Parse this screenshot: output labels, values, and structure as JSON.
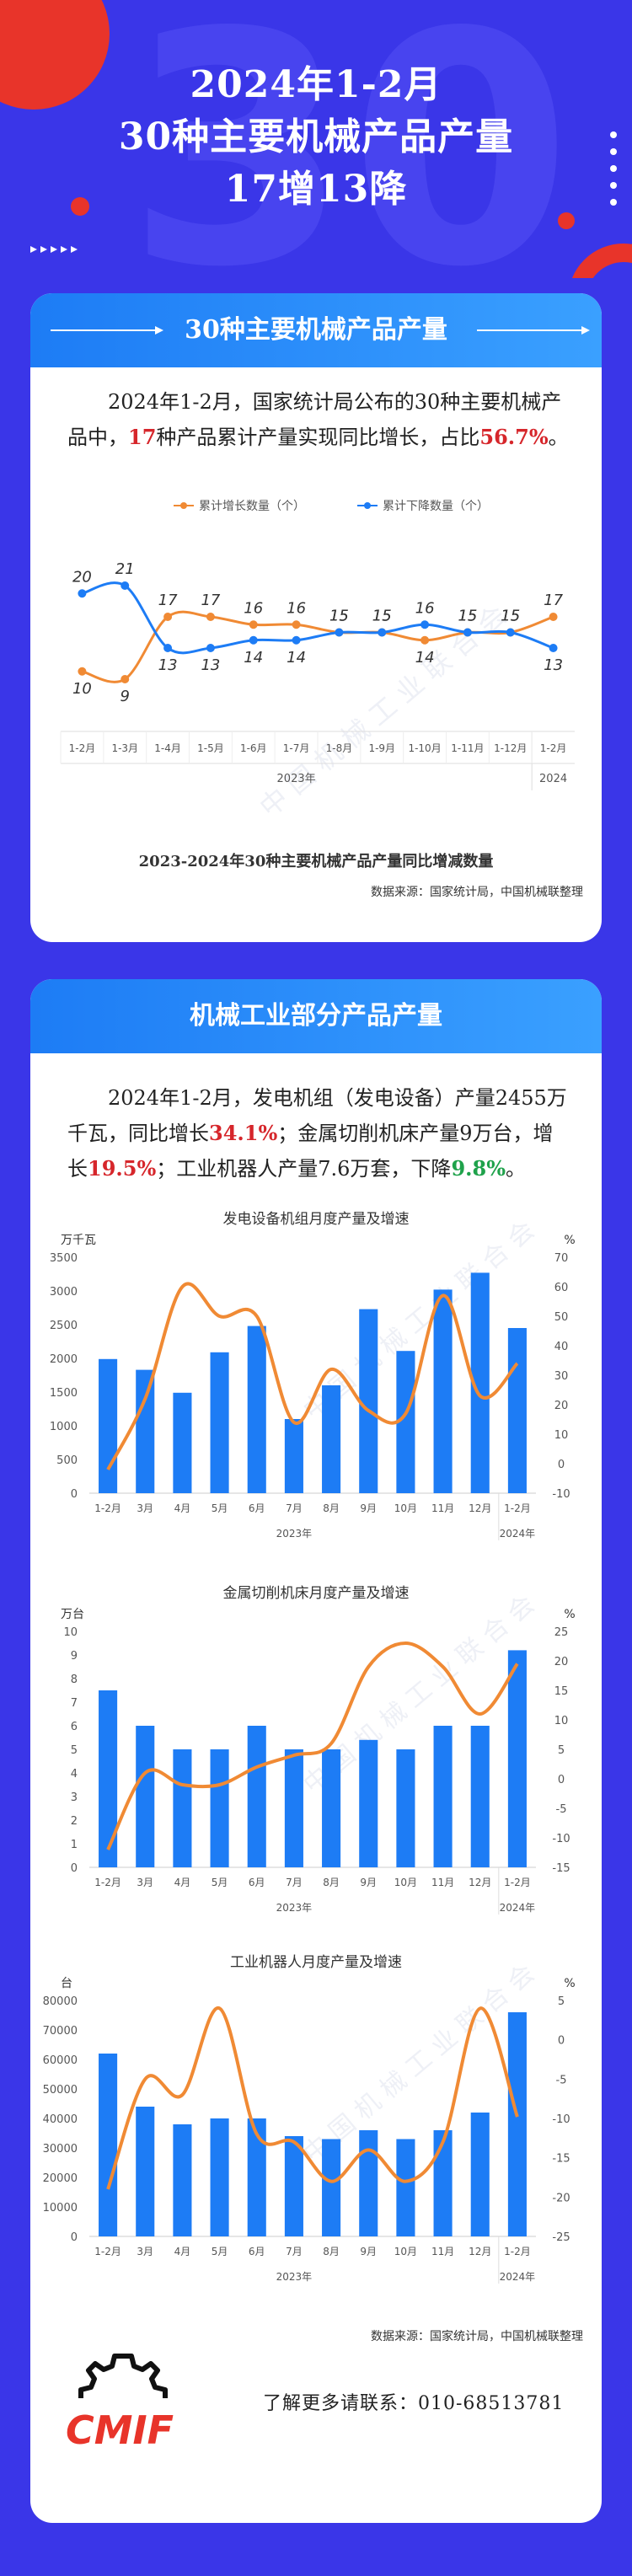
{
  "header": {
    "title_line1": "2024年1-2月",
    "title_line2": "30种主要机械产品产量",
    "title_line3": "17增13降",
    "colors": {
      "background": "#3a36e8",
      "accent_red": "#e8342a"
    }
  },
  "section1": {
    "banner_title": "30种主要机械产品产量",
    "para": {
      "p1": "2024年1-2月，国家统计局公布的30种主要机械产品中，",
      "num1": "17",
      "p2": "种产品累计产量实现同比增长，占比",
      "num2": "56.7%",
      "p3": "。"
    },
    "caption": "2023-2024年30种主要机械产品产量同比增减数量",
    "source": "数据来源：国家统计局，中国机械联整理"
  },
  "section2": {
    "banner_title": "机械工业部分产品产量",
    "para": {
      "p1": "2024年1-2月，发电机组（发电设备）产量2455万千瓦，同比增长",
      "v1": "34.1%",
      "p2": "；金属切削机床产量9万台，增长",
      "v2": "19.5%",
      "p3": "；工业机器人产量7.6万套，下降",
      "v3": "9.8%",
      "p4": "。"
    },
    "source": "数据来源：国家统计局，中国机械联整理"
  },
  "footer": {
    "logo_text": "CMIF",
    "contact": "了解更多请联系：010-68513781"
  },
  "chart_data": [
    {
      "type": "line",
      "title": "",
      "categories": [
        "1-2月",
        "1-3月",
        "1-4月",
        "1-5月",
        "1-6月",
        "1-7月",
        "1-8月",
        "1-9月",
        "1-10月",
        "1-11月",
        "1-12月",
        "1-2月"
      ],
      "year_labels": [
        "2023年",
        "2024"
      ],
      "series": [
        {
          "name": "累计增长数量（个）",
          "color": "#f08a34",
          "values": [
            10,
            9,
            17,
            17,
            16,
            16,
            15,
            15,
            14,
            15,
            15,
            17
          ]
        },
        {
          "name": "累计下降数量（个）",
          "color": "#1d7cf5",
          "values": [
            20,
            21,
            13,
            13,
            14,
            14,
            15,
            15,
            16,
            15,
            15,
            13
          ]
        }
      ],
      "ylim": [
        5,
        25
      ],
      "legend": "top",
      "grid": false
    },
    {
      "type": "bar",
      "title": "发电设备机组月度产量及增速",
      "ylabel_left": "万千瓦",
      "ylabel_right": "%",
      "categories": [
        "1-2月",
        "3月",
        "4月",
        "5月",
        "6月",
        "7月",
        "8月",
        "9月",
        "10月",
        "11月",
        "12月",
        "1-2月"
      ],
      "year_labels": [
        "2023年",
        "2024年"
      ],
      "left_ticks": [
        0,
        500,
        1000,
        1500,
        2000,
        2500,
        3000,
        3500
      ],
      "right_ticks": [
        -10,
        0,
        10,
        20,
        30,
        40,
        50,
        60,
        70
      ],
      "ylim_left": [
        0,
        3500
      ],
      "ylim_right": [
        -10,
        70
      ],
      "series": [
        {
          "name": "产量",
          "kind": "bar",
          "color": "#1d7cf5",
          "values": [
            1990,
            1830,
            1490,
            2090,
            2480,
            1100,
            1600,
            2730,
            2110,
            3020,
            3270,
            2450
          ]
        },
        {
          "name": "增速",
          "kind": "line",
          "color": "#f08a34",
          "values": [
            -2,
            22,
            60,
            50,
            50,
            14,
            32,
            18,
            17,
            57,
            23,
            34
          ]
        }
      ]
    },
    {
      "type": "bar",
      "title": "金属切削机床月度产量及增速",
      "ylabel_left": "万台",
      "ylabel_right": "%",
      "categories": [
        "1-2月",
        "3月",
        "4月",
        "5月",
        "6月",
        "7月",
        "8月",
        "9月",
        "10月",
        "11月",
        "12月",
        "1-2月"
      ],
      "year_labels": [
        "2023年",
        "2024年"
      ],
      "left_ticks": [
        0,
        1,
        2,
        3,
        4,
        5,
        6,
        7,
        8,
        9,
        10
      ],
      "right_ticks": [
        -15,
        -10,
        -5,
        0,
        5,
        10,
        15,
        20,
        25
      ],
      "ylim_left": [
        0,
        10
      ],
      "ylim_right": [
        -15,
        25
      ],
      "series": [
        {
          "name": "产量",
          "kind": "bar",
          "color": "#1d7cf5",
          "values": [
            7.5,
            6,
            5,
            5,
            6,
            5,
            5,
            5.4,
            5,
            6,
            6,
            9.2
          ]
        },
        {
          "name": "增速",
          "kind": "line",
          "color": "#f08a34",
          "values": [
            -12,
            1,
            -1,
            -1,
            2,
            4,
            6,
            19,
            23,
            19,
            11,
            19.5
          ]
        }
      ]
    },
    {
      "type": "bar",
      "title": "工业机器人月度产量及增速",
      "ylabel_left": "台",
      "ylabel_right": "%",
      "categories": [
        "1-2月",
        "3月",
        "4月",
        "5月",
        "6月",
        "7月",
        "8月",
        "9月",
        "10月",
        "11月",
        "12月",
        "1-2月"
      ],
      "year_labels": [
        "2023年",
        "2024年"
      ],
      "left_ticks": [
        0,
        10000,
        20000,
        30000,
        40000,
        50000,
        60000,
        70000,
        80000
      ],
      "right_ticks": [
        -25,
        -20,
        -15,
        -10,
        -5,
        0,
        5
      ],
      "ylim_left": [
        0,
        80000
      ],
      "ylim_right": [
        -25,
        5
      ],
      "series": [
        {
          "name": "产量",
          "kind": "bar",
          "color": "#1d7cf5",
          "values": [
            62000,
            44000,
            38000,
            40000,
            40000,
            34000,
            33000,
            36000,
            33000,
            36000,
            42000,
            76000
          ]
        },
        {
          "name": "增速",
          "kind": "line",
          "color": "#f08a34",
          "values": [
            -19,
            -5,
            -7,
            4,
            -12,
            -13,
            -18,
            -14,
            -18,
            -13,
            4,
            -9.8
          ]
        }
      ]
    }
  ]
}
